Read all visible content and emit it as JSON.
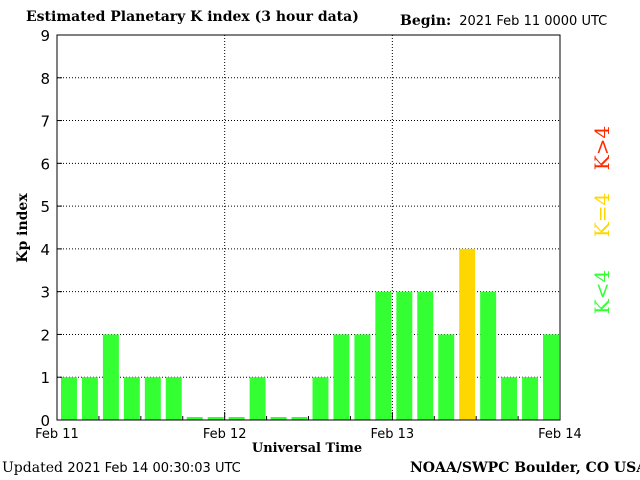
{
  "header": {
    "title": "Estimated Planetary K index (3 hour data)",
    "begin_label": "Begin:",
    "begin_value": "2021 Feb 11 0000 UTC"
  },
  "footer": {
    "updated_label": "Updated",
    "updated_value": "2021 Feb 14 00:30:03 UTC",
    "credit": "NOAA/SWPC Boulder, CO USA"
  },
  "legend": {
    "high": "K>4",
    "mid": "K=4",
    "low": "K<4"
  },
  "colors": {
    "low": "#33ff33",
    "mid": "#ffd700",
    "high": "#ff2a00"
  },
  "chart_data": {
    "type": "bar",
    "title": "Estimated Planetary K index (3 hour data)",
    "xlabel": "Universal Time",
    "ylabel": "Kp index",
    "ylim": [
      0,
      9
    ],
    "yticks": [
      0,
      1,
      2,
      3,
      4,
      5,
      6,
      7,
      8,
      9
    ],
    "xticks": [
      "Feb 11",
      "Feb 12",
      "Feb 13",
      "Feb 14"
    ],
    "interval_hours": 3,
    "values": [
      1,
      1,
      2,
      1,
      1,
      1,
      0.07,
      0.07,
      0.07,
      1,
      0.07,
      0.07,
      1,
      2,
      2,
      3,
      3,
      3,
      2,
      4,
      3,
      1,
      1,
      2
    ],
    "grid": true
  }
}
